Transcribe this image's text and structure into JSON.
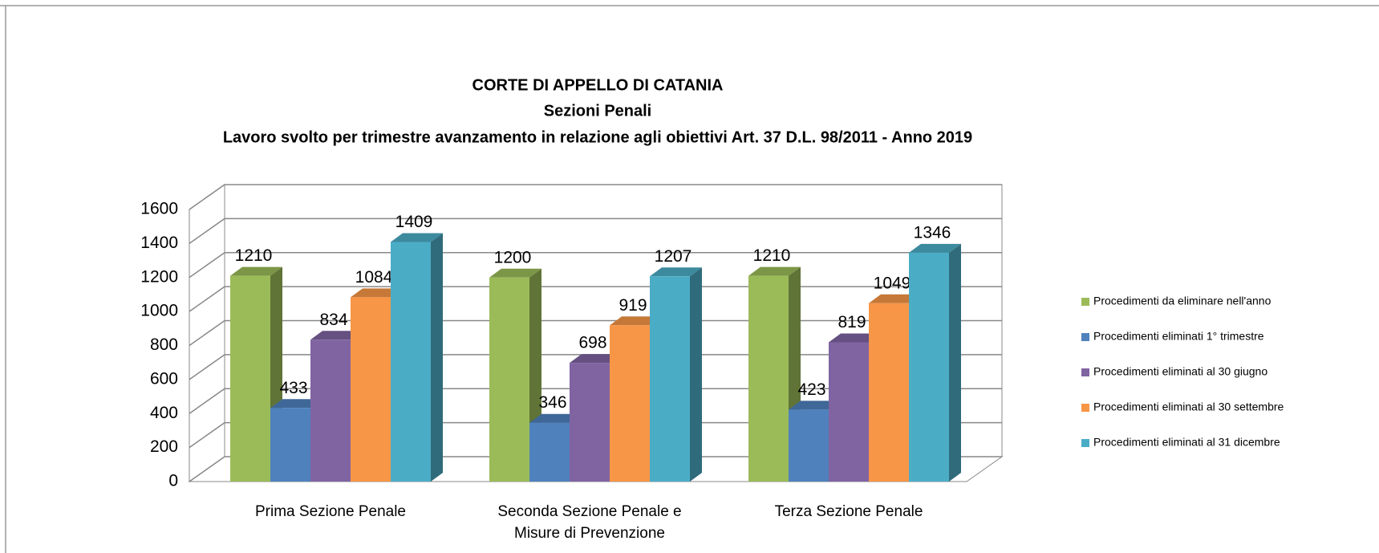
{
  "chart_data": {
    "type": "bar3d",
    "title": "CORTE DI APPELLO DI CATANIA",
    "subtitle": "Sezioni Penali",
    "subtitle2": "Lavoro svolto per trimestre avanzamento in relazione agli obiettivi Art. 37 D.L. 98/2011 - Anno 2019",
    "categories": [
      "Prima Sezione Penale",
      "Seconda Sezione Penale e Misure di Prevenzione",
      "Terza Sezione Penale"
    ],
    "series": [
      {
        "name": "Procedimenti da eliminare nell'anno",
        "color": "#9bbb59",
        "values": [
          1210,
          1200,
          1210
        ]
      },
      {
        "name": "Procedimenti eliminati 1° trimestre",
        "color": "#4f81bd",
        "values": [
          433,
          346,
          423
        ]
      },
      {
        "name": "Procedimenti eliminati al 30 giugno",
        "color": "#8064a2",
        "values": [
          834,
          698,
          819
        ]
      },
      {
        "name": "Procedimenti eliminati al 30 settembre",
        "color": "#f79646",
        "values": [
          1084,
          919,
          1049
        ]
      },
      {
        "name": "Procedimenti eliminati al 31 dicembre",
        "color": "#4bacc6",
        "values": [
          1409,
          1207,
          1346
        ]
      }
    ],
    "ylim": [
      0,
      1600
    ],
    "yticks": [
      0,
      200,
      400,
      600,
      800,
      1000,
      1200,
      1400,
      1600
    ],
    "grid": true,
    "legend": "right"
  }
}
